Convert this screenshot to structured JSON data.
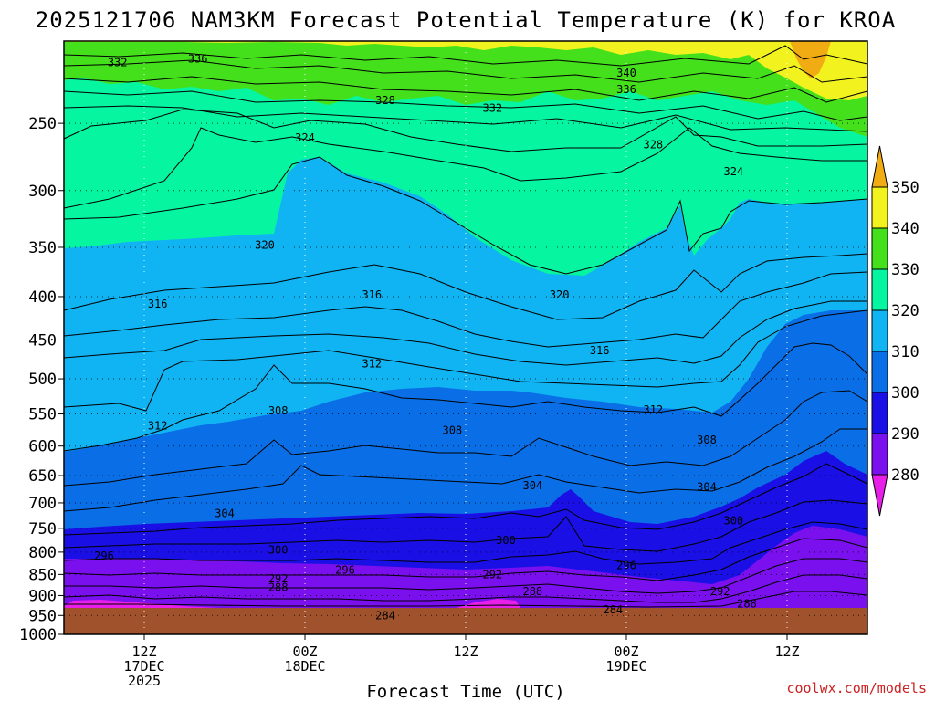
{
  "header": {
    "title": "2025121706 NAM3KM Forecast Potential Temperature (K) for KROA"
  },
  "footer": {
    "credit": "coolwx.com/models"
  },
  "chart_data": {
    "type": "heatmap",
    "title": "2025121706 NAM3KM Forecast Potential Temperature (K) for KROA",
    "xlabel": "Forecast Time (UTC)",
    "ylabel": "",
    "y_ticks": [
      250,
      300,
      350,
      400,
      450,
      500,
      550,
      600,
      650,
      700,
      750,
      800,
      850,
      900,
      950,
      1000
    ],
    "y_range": [
      1000,
      200
    ],
    "x_ticks": [
      {
        "hour": 6,
        "lines": [
          "12Z",
          "17DEC",
          "2025"
        ]
      },
      {
        "hour": 18,
        "lines": [
          "00Z",
          "18DEC"
        ]
      },
      {
        "hour": 30,
        "lines": [
          "12Z"
        ]
      },
      {
        "hour": 42,
        "lines": [
          "00Z",
          "19DEC"
        ]
      },
      {
        "hour": 54,
        "lines": [
          "12Z"
        ]
      }
    ],
    "x_range": [
      0,
      60
    ],
    "colorbar": {
      "levels": [
        280,
        290,
        300,
        310,
        320,
        330,
        340,
        350
      ],
      "colors": [
        "#e81fe8",
        "#7b10ee",
        "#1a10e6",
        "#0a6fe6",
        "#10b4f2",
        "#06f5a0",
        "#44e01c",
        "#f2f21e",
        "#f0ac12"
      ],
      "labels": [
        "280",
        "290",
        "300",
        "310",
        "320",
        "330",
        "340",
        "350"
      ]
    },
    "ground_color": "#a0522d",
    "grid": "dotted",
    "contour_labels": [
      {
        "value": "332",
        "hour": 4,
        "p": 212
      },
      {
        "value": "336",
        "hour": 10,
        "p": 210
      },
      {
        "value": "340",
        "hour": 42,
        "p": 218
      },
      {
        "value": "336",
        "hour": 42,
        "p": 228
      },
      {
        "value": "328",
        "hour": 24,
        "p": 235
      },
      {
        "value": "332",
        "hour": 32,
        "p": 240
      },
      {
        "value": "324",
        "hour": 18,
        "p": 260
      },
      {
        "value": "328",
        "hour": 44,
        "p": 265
      },
      {
        "value": "324",
        "hour": 50,
        "p": 285
      },
      {
        "value": "320",
        "hour": 15,
        "p": 348
      },
      {
        "value": "316",
        "hour": 7,
        "p": 408
      },
      {
        "value": "316",
        "hour": 23,
        "p": 398
      },
      {
        "value": "320",
        "hour": 37,
        "p": 398
      },
      {
        "value": "316",
        "hour": 40,
        "p": 463
      },
      {
        "value": "312",
        "hour": 23,
        "p": 480
      },
      {
        "value": "312",
        "hour": 7,
        "p": 568
      },
      {
        "value": "308",
        "hour": 16,
        "p": 545
      },
      {
        "value": "312",
        "hour": 44,
        "p": 544
      },
      {
        "value": "308",
        "hour": 29,
        "p": 575
      },
      {
        "value": "308",
        "hour": 48,
        "p": 590
      },
      {
        "value": "304",
        "hour": 35,
        "p": 668
      },
      {
        "value": "304",
        "hour": 12,
        "p": 720
      },
      {
        "value": "304",
        "hour": 48,
        "p": 670
      },
      {
        "value": "300",
        "hour": 50,
        "p": 735
      },
      {
        "value": "300",
        "hour": 33,
        "p": 775
      },
      {
        "value": "300",
        "hour": 16,
        "p": 795
      },
      {
        "value": "296",
        "hour": 3,
        "p": 808
      },
      {
        "value": "296",
        "hour": 21,
        "p": 840
      },
      {
        "value": "296",
        "hour": 42,
        "p": 830
      },
      {
        "value": "292",
        "hour": 16,
        "p": 860
      },
      {
        "value": "292",
        "hour": 32,
        "p": 850
      },
      {
        "value": "292",
        "hour": 49,
        "p": 890
      },
      {
        "value": "288",
        "hour": 16,
        "p": 880
      },
      {
        "value": "288",
        "hour": 35,
        "p": 890
      },
      {
        "value": "288",
        "hour": 51,
        "p": 920
      },
      {
        "value": "284",
        "hour": 24,
        "p": 950
      },
      {
        "value": "284",
        "hour": 41,
        "p": 935
      }
    ]
  }
}
